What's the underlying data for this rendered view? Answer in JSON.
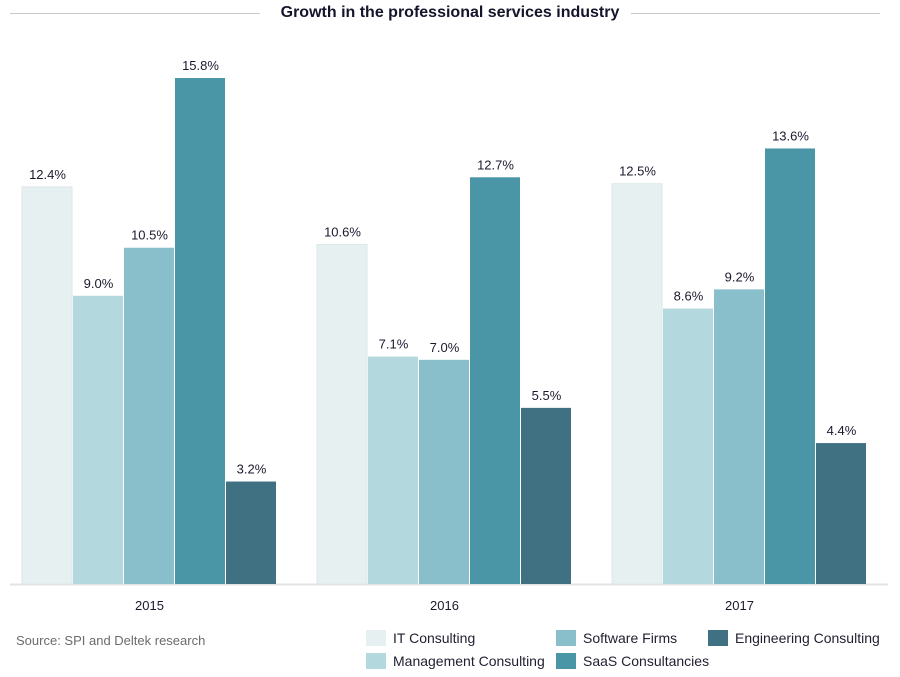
{
  "chart_data": {
    "type": "bar",
    "title": "Growth in the professional services industry",
    "xlabel": "",
    "ylabel": "",
    "ylim": [
      0,
      16
    ],
    "grid": false,
    "legend_position": "bottom-right",
    "categories": [
      "2015",
      "2016",
      "2017"
    ],
    "series": [
      {
        "name": "IT Consulting",
        "color": "#e6f0f1",
        "values": [
          12.4,
          10.6,
          12.5
        ],
        "labels": [
          "12.4%",
          "10.6%",
          "12.5%"
        ]
      },
      {
        "name": "Management Consulting",
        "color": "#b3d8de",
        "values": [
          9.0,
          7.1,
          8.6
        ],
        "labels": [
          "9.0%",
          "7.1%",
          "8.6%"
        ]
      },
      {
        "name": "Software Firms",
        "color": "#88bfca",
        "values": [
          10.5,
          7.0,
          9.2
        ],
        "labels": [
          "10.5%",
          "7.0%",
          "9.2%"
        ]
      },
      {
        "name": "SaaS Consultancies",
        "color": "#4a95a6",
        "values": [
          15.8,
          12.7,
          13.6
        ],
        "labels": [
          "15.8%",
          "12.7%",
          "13.6%"
        ]
      },
      {
        "name": "Engineering Consulting",
        "color": "#3f7183",
        "values": [
          3.2,
          5.5,
          4.4
        ],
        "labels": [
          "3.2%",
          "5.5%",
          "4.4%"
        ]
      }
    ],
    "source": "Source: SPI and Deltek research"
  },
  "legend": {
    "items": [
      {
        "name": "IT Consulting",
        "color": "#e6f0f1"
      },
      {
        "name": "Software Firms",
        "color": "#88bfca"
      },
      {
        "name": "Engineering Consulting",
        "color": "#3f7183"
      },
      {
        "name": "Management Consulting",
        "color": "#b3d8de"
      },
      {
        "name": "SaaS Consultancies",
        "color": "#4a95a6"
      }
    ]
  }
}
